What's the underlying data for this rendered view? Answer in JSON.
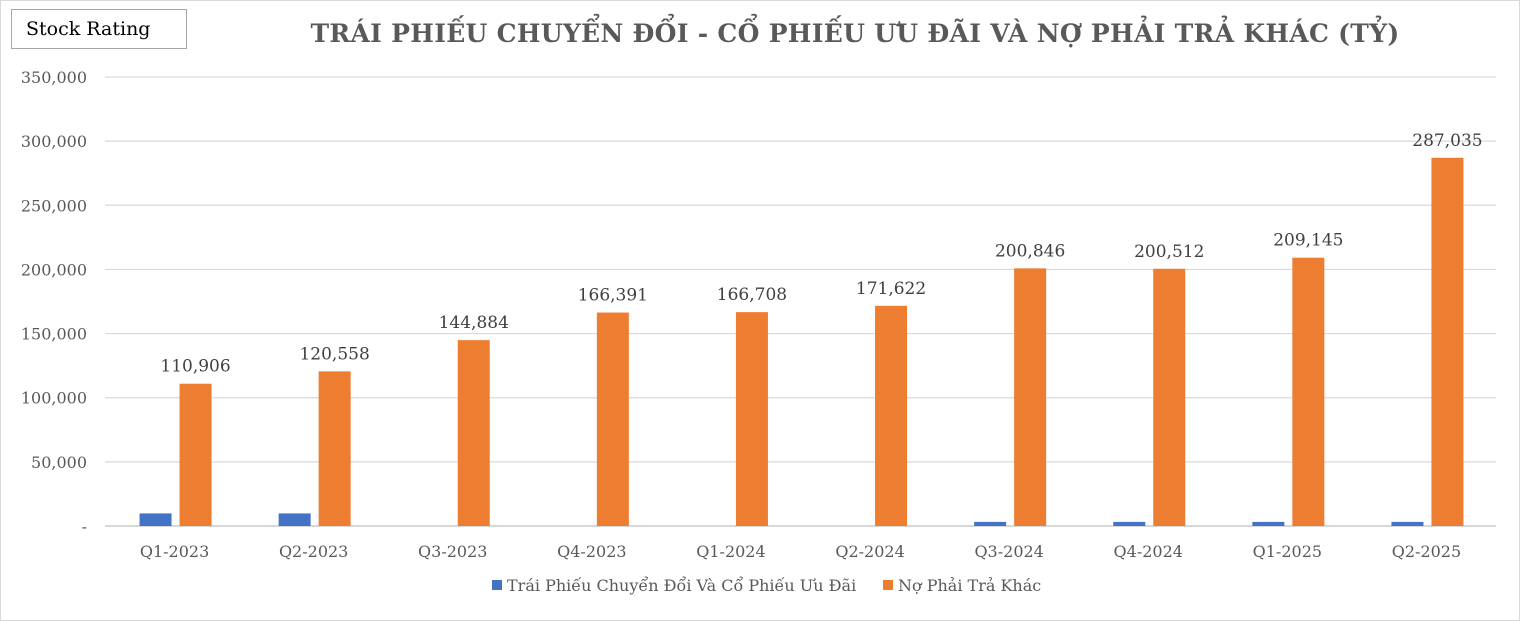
{
  "badge": {
    "label": "Stock Rating"
  },
  "chart_data": {
    "type": "bar",
    "title": "TRÁI PHIẾU CHUYỂN ĐỔI - CỔ PHIẾU ƯU ĐÃI VÀ NỢ PHẢI TRẢ KHÁC (TỶ)",
    "categories": [
      "Q1-2023",
      "Q2-2023",
      "Q3-2023",
      "Q4-2023",
      "Q1-2024",
      "Q2-2024",
      "Q3-2024",
      "Q4-2024",
      "Q1-2025",
      "Q2-2025"
    ],
    "series": [
      {
        "name": "Trái Phiếu Chuyển Đổi Và Cổ Phiếu Ưu Đãi",
        "color": "#4472C4",
        "values": [
          9800,
          9800,
          0,
          0,
          0,
          0,
          3200,
          3200,
          3200,
          3200
        ]
      },
      {
        "name": "Nợ Phải Trả Khác",
        "color": "#ED7D31",
        "values": [
          110906,
          120558,
          144884,
          166391,
          166708,
          171622,
          200846,
          200512,
          209145,
          287035
        ],
        "data_labels": [
          "110,906",
          "120,558",
          "144,884",
          "166,391",
          "166,708",
          "171,622",
          "200,846",
          "200,512",
          "209,145",
          "287,035"
        ]
      }
    ],
    "ylim": [
      0,
      350000
    ],
    "yticks": [
      0,
      50000,
      100000,
      150000,
      200000,
      250000,
      300000,
      350000
    ],
    "ytick_labels": [
      "-",
      "50,000",
      "100,000",
      "150,000",
      "200,000",
      "250,000",
      "300,000",
      "350,000"
    ],
    "grid": true,
    "legend": "bottom"
  }
}
